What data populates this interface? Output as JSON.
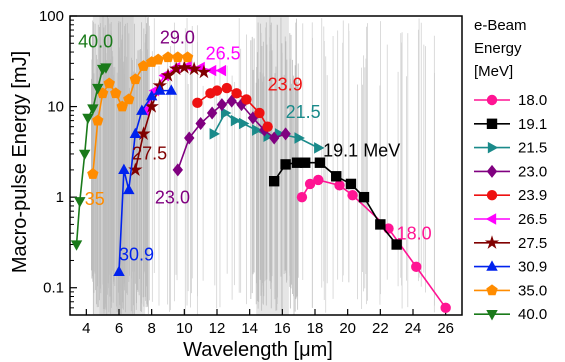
{
  "chart_data": {
    "type": "line",
    "xlabel": "Wavelength [μm]",
    "ylabel": "Macro-pulse Energy [mJ]",
    "xlim": [
      3,
      27
    ],
    "ylim": [
      0.05,
      100
    ],
    "yscale": "log",
    "xticks": [
      4,
      6,
      8,
      10,
      12,
      14,
      16,
      18,
      20,
      22,
      24,
      26
    ],
    "yticks": [
      0.1,
      1,
      10,
      100
    ],
    "ytick_labels": [
      "0.1",
      "1",
      "10",
      "100"
    ],
    "legend_title": [
      "e-Beam",
      "Energy",
      "[MeV]"
    ],
    "legend_position": "right",
    "background": "grey atmospheric absorption lines",
    "series": [
      {
        "name": "18.0",
        "color": "#ff1493",
        "marker": "circle",
        "x": [
          17.2,
          17.7,
          18.2,
          19.5,
          20.3,
          22.5,
          24.2,
          26.0
        ],
        "y": [
          1.0,
          1.4,
          1.55,
          1.35,
          1.05,
          0.45,
          0.17,
          0.06
        ]
      },
      {
        "name": "19.1",
        "color": "#000000",
        "marker": "square",
        "x": [
          15.5,
          16.2,
          16.9,
          17.4,
          18.3,
          19.3,
          20.2,
          21.0,
          22.0,
          23.0
        ],
        "y": [
          1.5,
          2.3,
          2.4,
          2.4,
          2.4,
          1.7,
          1.4,
          1.0,
          0.5,
          0.3
        ]
      },
      {
        "name": "21.5",
        "color": "#1a8a8a",
        "marker": "triangle-right",
        "x": [
          11.8,
          12.5,
          13.1,
          13.6,
          14.4,
          15.1,
          15.8,
          17.0,
          18.2
        ],
        "y": [
          5.0,
          8.5,
          7.0,
          6.5,
          5.5,
          4.7,
          5.0,
          4.5,
          3.5
        ]
      },
      {
        "name": "23.0",
        "color": "#800080",
        "marker": "diamond",
        "x": [
          9.6,
          10.3,
          11.0,
          11.7,
          12.3,
          12.9,
          13.5,
          14.2,
          14.9,
          15.5,
          16.2
        ],
        "y": [
          2.0,
          4.5,
          6.5,
          8.5,
          10.5,
          11.5,
          10.5,
          7.5,
          5.5,
          4.5,
          5.0
        ]
      },
      {
        "name": "23.9",
        "color": "#ee1111",
        "marker": "circle",
        "x": [
          10.8,
          11.6,
          12.0,
          12.6,
          13.2,
          13.8,
          14.6,
          15.1
        ],
        "y": [
          11.0,
          14.0,
          15.0,
          16.0,
          14.0,
          12.0,
          8.5,
          6.0
        ]
      },
      {
        "name": "26.5",
        "color": "#ff00ff",
        "marker": "triangle-left",
        "x": [
          7.6,
          8.2,
          8.8,
          9.5,
          10.2,
          11.0,
          11.7,
          12.3
        ],
        "y": [
          9.0,
          15.0,
          22.0,
          27.0,
          28.0,
          27.0,
          25.0,
          25.0
        ]
      },
      {
        "name": "27.5",
        "color": "#800000",
        "marker": "star",
        "x": [
          7.0,
          7.5,
          8.0,
          8.5,
          9.0,
          9.5,
          10.0,
          10.6,
          11.2
        ],
        "y": [
          2.0,
          5.0,
          10.0,
          17.0,
          22.0,
          26.0,
          27.0,
          26.0,
          24.0
        ]
      },
      {
        "name": "30.9",
        "color": "#0022ee",
        "marker": "triangle-up",
        "x": [
          6.0,
          6.3,
          6.6,
          7.0,
          7.4,
          8.0,
          8.5,
          9.2
        ],
        "y": [
          0.15,
          2.0,
          1.2,
          5.0,
          9.0,
          13.0,
          15.0,
          15.0
        ]
      },
      {
        "name": "35.0",
        "color": "#ff8c00",
        "marker": "pentagon",
        "x": [
          4.4,
          4.7,
          5.0,
          5.4,
          5.8,
          6.2,
          6.6,
          7.0,
          7.5,
          8.0,
          8.4,
          9.0,
          9.6,
          10.2
        ],
        "y": [
          1.8,
          7.0,
          14.0,
          18.0,
          14.0,
          10.0,
          12.0,
          20.0,
          28.0,
          31.0,
          33.0,
          35.0,
          35.0,
          35.0
        ]
      },
      {
        "name": "40.0",
        "color": "#1a7a1a",
        "marker": "triangle-down",
        "x": [
          3.4,
          3.6,
          3.9,
          4.1,
          4.4,
          4.7,
          5.0,
          5.2
        ],
        "y": [
          0.3,
          0.9,
          3.0,
          7.5,
          9.5,
          16.0,
          26.0,
          27.0
        ]
      }
    ],
    "annotations": [
      {
        "text": "40.0",
        "x": 3.5,
        "y": 45,
        "color": "#1a7a1a"
      },
      {
        "text": "29.0",
        "x": 8.5,
        "y": 50,
        "color": "#800080"
      },
      {
        "text": "26.5",
        "x": 11.3,
        "y": 33,
        "color": "#ff00ff"
      },
      {
        "text": "23.9",
        "x": 15.1,
        "y": 15,
        "color": "#ee1111"
      },
      {
        "text": "21.5",
        "x": 16.2,
        "y": 7.5,
        "color": "#1a8a8a"
      },
      {
        "text": "19.1 MeV",
        "x": 18.5,
        "y": 2.8,
        "color": "#000000"
      },
      {
        "text": "27.5",
        "x": 6.8,
        "y": 2.6,
        "color": "#800000"
      },
      {
        "text": "23.0",
        "x": 8.2,
        "y": 0.85,
        "color": "#800080"
      },
      {
        "text": "35",
        "x": 3.9,
        "y": 0.82,
        "color": "#ff8c00"
      },
      {
        "text": "30.9",
        "x": 6.0,
        "y": 0.2,
        "color": "#0022ee"
      },
      {
        "text": "18.0",
        "x": 23.0,
        "y": 0.34,
        "color": "#ff1493"
      }
    ]
  }
}
